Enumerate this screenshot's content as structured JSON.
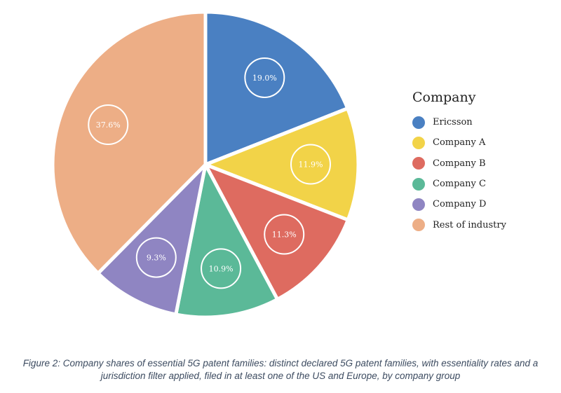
{
  "chart_data": {
    "type": "pie",
    "title": "",
    "legend_title": "Company",
    "legend_position": "right",
    "categories": [
      "Ericsson",
      "Company A",
      "Company B",
      "Company C",
      "Company D",
      "Rest of industry"
    ],
    "values": [
      19.0,
      11.9,
      11.3,
      10.9,
      9.3,
      37.6
    ],
    "labels": [
      "19.0%",
      "11.9%",
      "11.3%",
      "10.9%",
      "9.3%",
      "37.6%"
    ],
    "colors": [
      "#4a80c2",
      "#f2d348",
      "#de6b60",
      "#5bb998",
      "#8f85c2",
      "#edae86"
    ]
  },
  "caption": {
    "line1": "Figure 2: Company shares of essential 5G patent families: distinct declared 5G patent families, with essentiality rates and a",
    "line2": "jurisdiction filter applied, filed in at least one of the US and Europe, by company group"
  }
}
